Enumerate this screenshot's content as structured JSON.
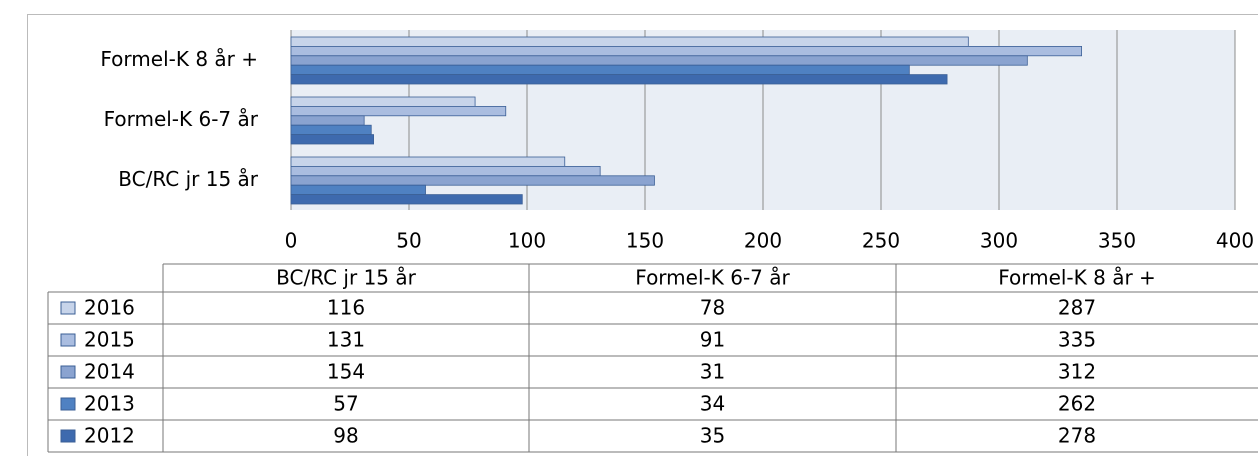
{
  "chart_data": {
    "type": "hbar",
    "categories": [
      "BC/RC jr 15 år",
      "Formel-K 6-7 år",
      "Formel-K 8 år +"
    ],
    "series": [
      {
        "name": "2016",
        "color": "#c7d4ea",
        "values": [
          116,
          78,
          287
        ]
      },
      {
        "name": "2015",
        "color": "#aabde0",
        "values": [
          131,
          91,
          335
        ]
      },
      {
        "name": "2014",
        "color": "#8aa3d0",
        "values": [
          154,
          31,
          312
        ]
      },
      {
        "name": "2013",
        "color": "#4f81c2",
        "values": [
          57,
          34,
          262
        ]
      },
      {
        "name": "2012",
        "color": "#3e6aae",
        "values": [
          98,
          35,
          278
        ]
      }
    ],
    "xlim": [
      0,
      400
    ],
    "xticks": [
      0,
      50,
      100,
      150,
      200,
      250,
      300,
      350,
      400
    ],
    "grid": true
  }
}
